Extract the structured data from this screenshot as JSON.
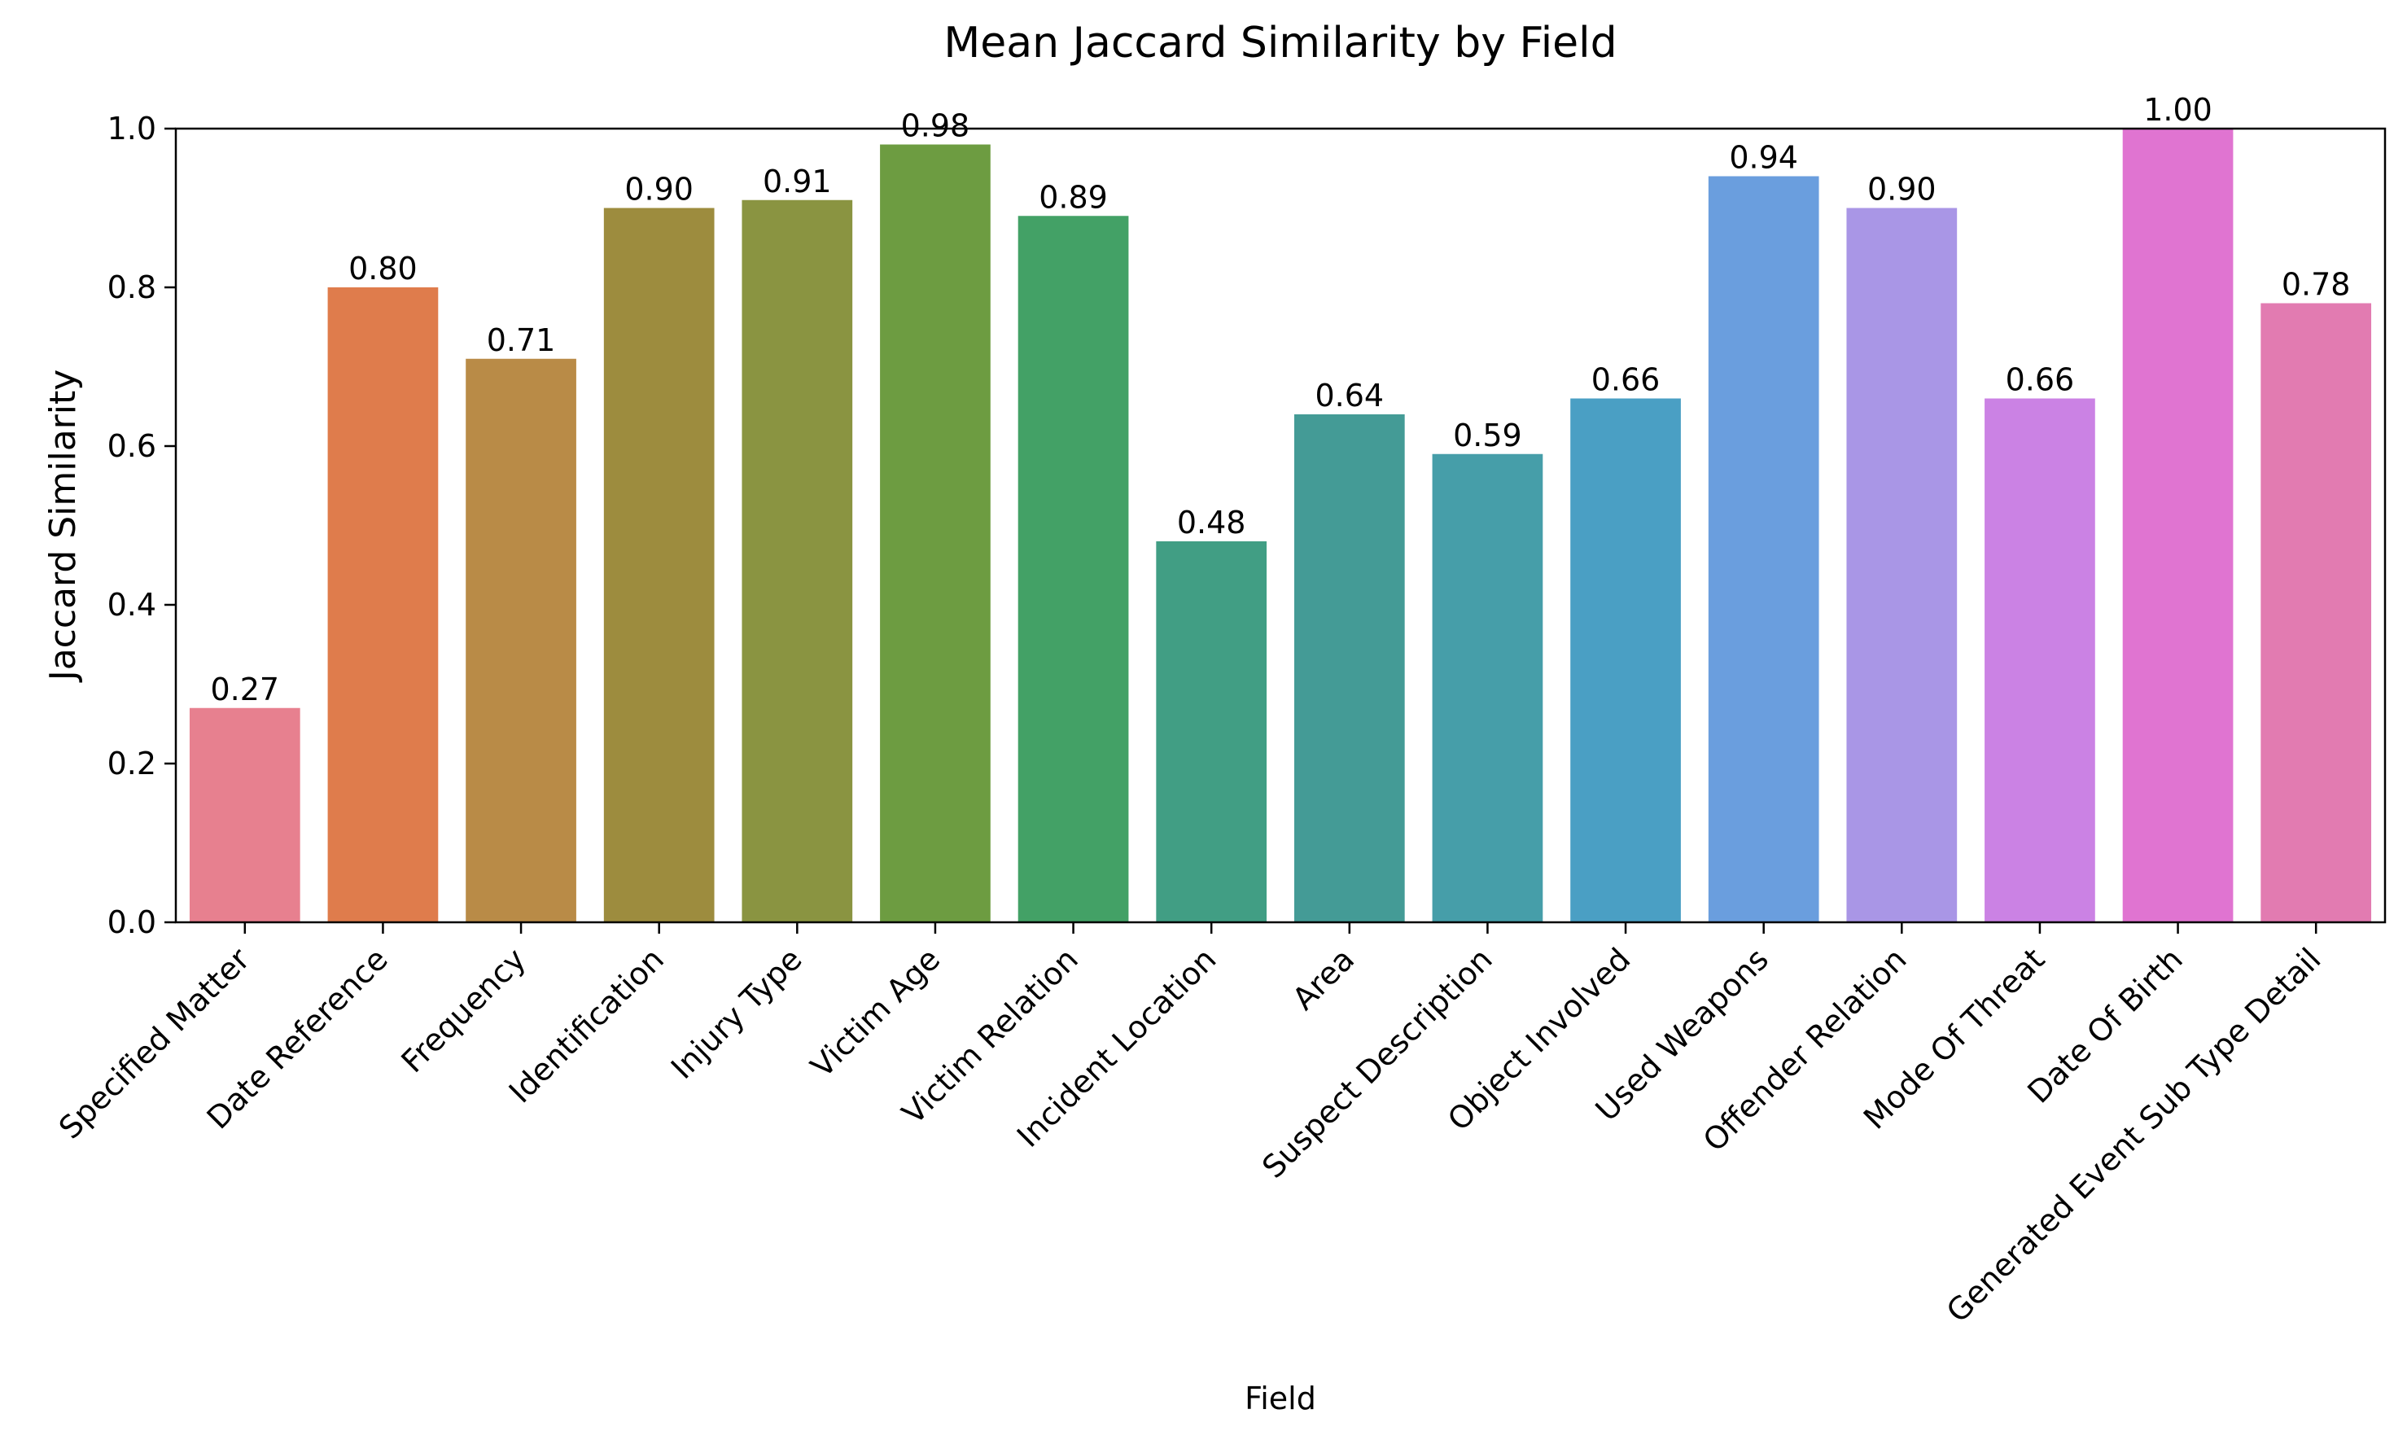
{
  "chart_data": {
    "type": "bar",
    "title": "Mean Jaccard Similarity by Field",
    "xlabel": "Field",
    "ylabel": "Jaccard Similarity",
    "ylim": [
      0,
      1.0
    ],
    "yticks": [
      "0.0",
      "0.2",
      "0.4",
      "0.6",
      "0.8",
      "1.0"
    ],
    "grid": false,
    "categories": [
      "Specified Matter",
      "Date Reference",
      "Frequency",
      "Identification",
      "Injury Type",
      "Victim Age",
      "Victim Relation",
      "Incident Location",
      "Area",
      "Suspect Description",
      "Object Involved",
      "Used Weapons",
      "Offender Relation",
      "Mode Of Threat",
      "Date Of Birth",
      "Generated Event Sub Type Detail"
    ],
    "values": [
      0.27,
      0.8,
      0.71,
      0.9,
      0.91,
      0.98,
      0.89,
      0.48,
      0.64,
      0.59,
      0.66,
      0.94,
      0.9,
      0.66,
      1.0,
      0.78
    ],
    "value_labels": [
      "0.27",
      "0.80",
      "0.71",
      "0.90",
      "0.91",
      "0.98",
      "0.89",
      "0.48",
      "0.64",
      "0.59",
      "0.66",
      "0.94",
      "0.90",
      "0.66",
      "1.00",
      "0.78"
    ],
    "colors": [
      "#e7808f",
      "#df7c4c",
      "#b98b47",
      "#9d8c3e",
      "#8a9441",
      "#6d9c41",
      "#43a166",
      "#419e84",
      "#449b96",
      "#469ea9",
      "#4a9fc4",
      "#6a9ede",
      "#a996e6",
      "#cb82e4",
      "#e074d1",
      "#e27bb1"
    ]
  }
}
